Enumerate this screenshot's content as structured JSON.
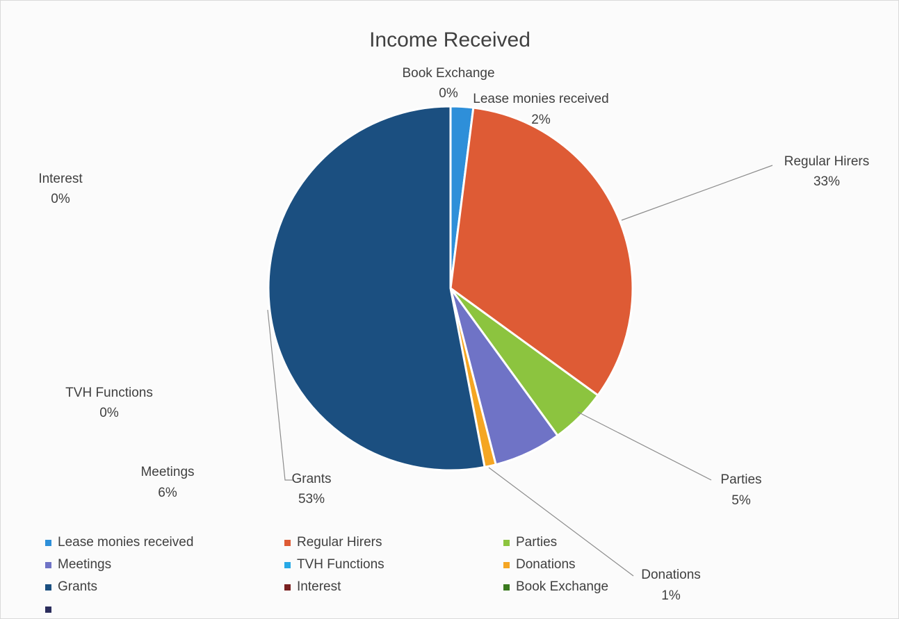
{
  "chart_data": {
    "type": "pie",
    "title": "Income Received",
    "slices": [
      {
        "name": "Lease monies received",
        "value": 2,
        "value_label": "2%",
        "color": "#2e8fd9"
      },
      {
        "name": "Regular Hirers",
        "value": 33,
        "value_label": "33%",
        "color": "#de5b35"
      },
      {
        "name": "Parties",
        "value": 5,
        "value_label": "5%",
        "color": "#8cc43f"
      },
      {
        "name": "Meetings",
        "value": 6,
        "value_label": "6%",
        "color": "#6f73c6"
      },
      {
        "name": "TVH Functions",
        "value": 0,
        "value_label": "0%",
        "color": "#28a9e6"
      },
      {
        "name": "Donations",
        "value": 1,
        "value_label": "1%",
        "color": "#f5a623"
      },
      {
        "name": "Grants",
        "value": 53,
        "value_label": "53%",
        "color": "#1b4f80"
      },
      {
        "name": "Interest",
        "value": 0,
        "value_label": "0%",
        "color": "#7a2020"
      },
      {
        "name": "Book Exchange",
        "value": 0,
        "value_label": "0%",
        "color": "#3a7a1e"
      }
    ],
    "legend": {
      "placement": "bottom",
      "entries": [
        {
          "name": "Lease monies received",
          "color": "#2e8fd9"
        },
        {
          "name": "Regular Hirers",
          "color": "#de5b35"
        },
        {
          "name": "Parties",
          "color": "#8cc43f"
        },
        {
          "name": "Meetings",
          "color": "#6f73c6"
        },
        {
          "name": "TVH Functions",
          "color": "#28a9e6"
        },
        {
          "name": "Donations",
          "color": "#f5a623"
        },
        {
          "name": "Grants",
          "color": "#1b4f80"
        },
        {
          "name": "Interest",
          "color": "#7a2020"
        },
        {
          "name": "Book Exchange",
          "color": "#3a7a1e"
        },
        {
          "name": "",
          "color": "#2b2d5c"
        }
      ]
    }
  }
}
